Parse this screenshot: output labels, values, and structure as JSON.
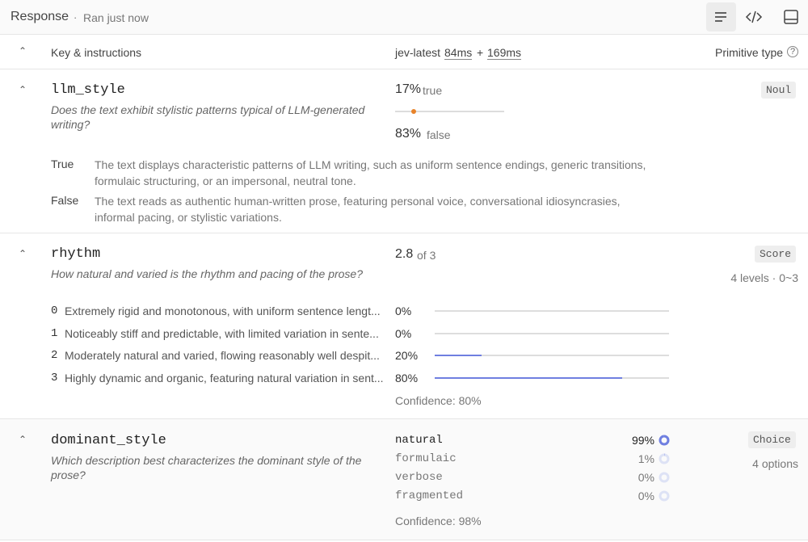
{
  "header": {
    "title": "Response",
    "status": "Ran just now"
  },
  "columns": {
    "key": "Key & instructions",
    "model": "jev-latest",
    "latency1": "84ms",
    "plus": "+",
    "latency2": "169ms",
    "type": "Primitive type"
  },
  "items": [
    {
      "key": "llm_style",
      "question": "Does the text exhibit stylistic patterns typical of LLM-generated writing?",
      "type": "Noul",
      "result": {
        "true_pct": {
          "value": 17,
          "label": "17%"
        },
        "true_label": "true",
        "false_pct": {
          "value": 83,
          "label": "83%"
        },
        "false_label": "false"
      },
      "definitions": [
        {
          "term": "True",
          "text": "The text displays characteristic patterns of LLM writing, such as uniform sentence endings, generic transitions, formulaic structuring, or an impersonal, neutral tone."
        },
        {
          "term": "False",
          "text": "The text reads as authentic human-written prose, featuring personal voice, conversational idiosyncrasies, informal pacing, or stylistic variations."
        }
      ]
    },
    {
      "key": "rhythm",
      "question": "How natural and varied is the rhythm and pacing of the prose?",
      "type": "Score",
      "type_detail": "4 levels · 0~3",
      "score": "2.8",
      "score_of": "of 3",
      "levels": [
        {
          "index": "0",
          "text": "Extremely rigid and monotonous, with uniform sentence lengt...",
          "pct": {
            "value": 0,
            "label": "0%"
          }
        },
        {
          "index": "1",
          "text": "Noticeably stiff and predictable, with limited variation in sente...",
          "pct": {
            "value": 0,
            "label": "0%"
          }
        },
        {
          "index": "2",
          "text": "Moderately natural and varied, flowing reasonably well despit...",
          "pct": {
            "value": 20,
            "label": "20%"
          }
        },
        {
          "index": "3",
          "text": "Highly dynamic and organic, featuring natural variation in sent...",
          "pct": {
            "value": 80,
            "label": "80%"
          }
        }
      ],
      "confidence": "Confidence: 80%"
    },
    {
      "key": "dominant_style",
      "question": "Which description best characterizes the dominant style of the prose?",
      "type": "Choice",
      "type_detail": "4 options",
      "options": [
        {
          "name": "natural",
          "pct": {
            "value": 99,
            "label": "99%"
          }
        },
        {
          "name": "formulaic",
          "pct": {
            "value": 1,
            "label": "1%"
          }
        },
        {
          "name": "verbose",
          "pct": {
            "value": 0,
            "label": "0%"
          }
        },
        {
          "name": "fragmented",
          "pct": {
            "value": 0,
            "label": "0%"
          }
        }
      ],
      "confidence": "Confidence: 98%"
    }
  ]
}
